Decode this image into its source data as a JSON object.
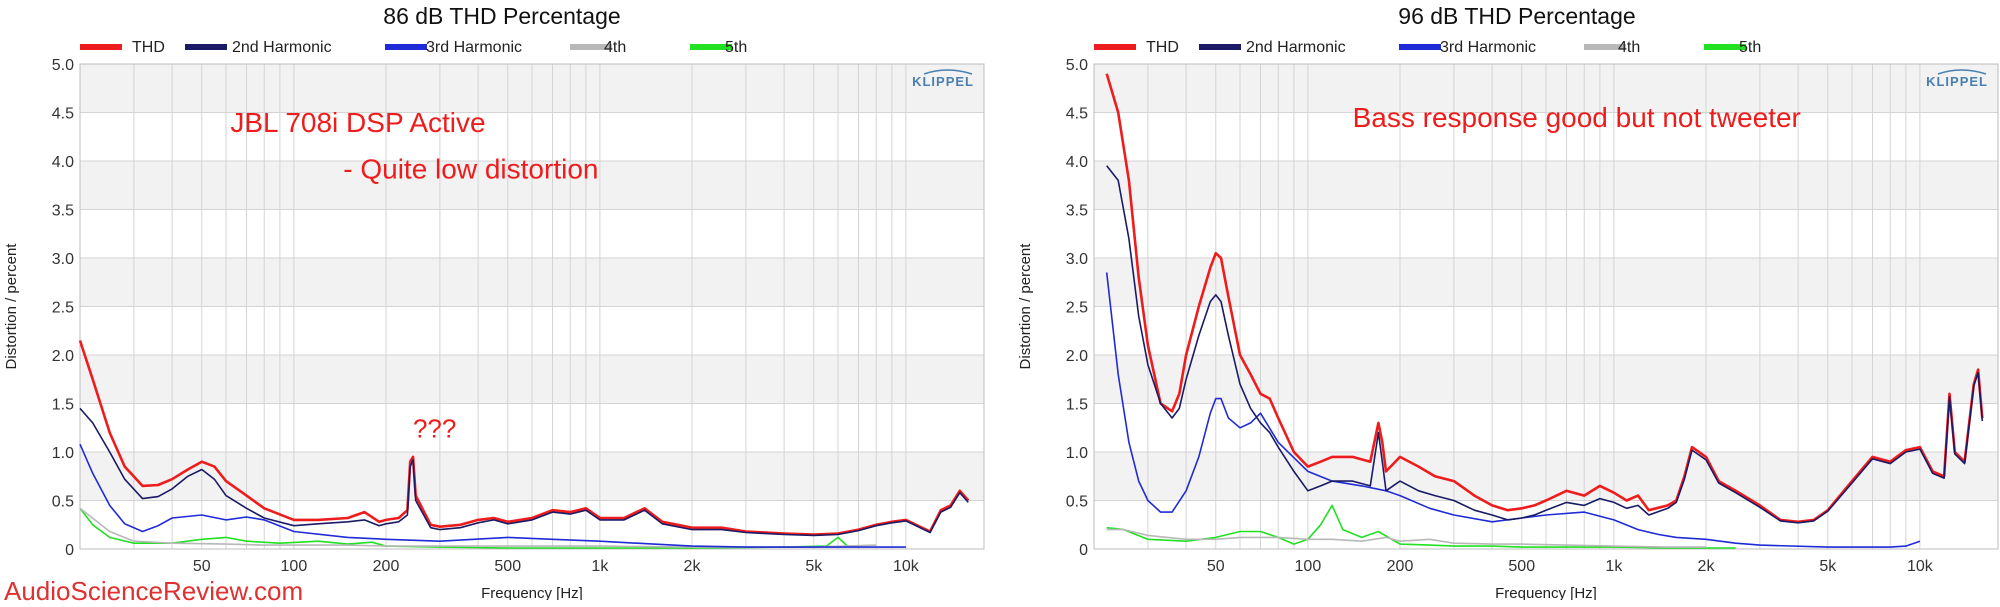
{
  "watermark": "AudioScienceReview.com",
  "colors": {
    "THD": "#ee1c1c",
    "2nd Harmonic": "#1a1a66",
    "3rd Harmonic": "#1f2bd6",
    "4th": "#b8b8b8",
    "5th": "#22e022",
    "annotation": "#ee1c1c",
    "band": "#f2f2f2",
    "grid": "#d4d4d4"
  },
  "chart_data": [
    {
      "type": "line",
      "title": "86 dB THD Percentage",
      "xlabel": "Frequency [Hz]",
      "ylabel": "Distortion / percent",
      "xscale": "log",
      "xlim": [
        20,
        18000
      ],
      "ylim": [
        0,
        5
      ],
      "xticks": [
        50,
        100,
        200,
        500,
        1000,
        2000,
        5000,
        10000
      ],
      "xticklabels": [
        "50",
        "100",
        "200",
        "500",
        "1k",
        "2k",
        "5k",
        "10k"
      ],
      "yticklabels": [
        "0",
        "0.5",
        "1.0",
        "1.5",
        "2.0",
        "2.5",
        "3.0",
        "3.5",
        "4.0",
        "4.5",
        "5.0"
      ],
      "grid": true,
      "legend_position": "top",
      "logo": "KLIPPEL",
      "annotations": [
        {
          "text": "JBL 708i DSP Active",
          "x": 62,
          "y": 4.3
        },
        {
          "text": "- Quite low distortion",
          "x": 145,
          "y": 3.82
        },
        {
          "text": "???",
          "x": 245,
          "y": 1.15
        }
      ],
      "series": [
        {
          "name": "THD",
          "x": [
            20,
            22,
            25,
            28,
            32,
            36,
            40,
            45,
            50,
            55,
            60,
            70,
            80,
            100,
            120,
            150,
            170,
            190,
            200,
            220,
            235,
            240,
            245,
            250,
            280,
            300,
            350,
            400,
            450,
            500,
            600,
            700,
            800,
            900,
            1000,
            1200,
            1400,
            1600,
            2000,
            2500,
            3000,
            4000,
            5000,
            6000,
            7000,
            8000,
            9000,
            10000,
            12000,
            13000,
            14000,
            15000,
            16000
          ],
          "y": [
            2.15,
            1.75,
            1.2,
            0.85,
            0.65,
            0.66,
            0.72,
            0.82,
            0.9,
            0.85,
            0.7,
            0.55,
            0.42,
            0.3,
            0.3,
            0.32,
            0.38,
            0.28,
            0.3,
            0.32,
            0.4,
            0.9,
            0.95,
            0.55,
            0.25,
            0.23,
            0.25,
            0.3,
            0.32,
            0.28,
            0.32,
            0.4,
            0.38,
            0.42,
            0.32,
            0.32,
            0.42,
            0.28,
            0.22,
            0.22,
            0.18,
            0.16,
            0.15,
            0.16,
            0.2,
            0.25,
            0.28,
            0.3,
            0.18,
            0.4,
            0.45,
            0.6,
            0.5
          ]
        },
        {
          "name": "2nd Harmonic",
          "x": [
            20,
            22,
            25,
            28,
            32,
            36,
            40,
            45,
            50,
            55,
            60,
            70,
            80,
            100,
            120,
            150,
            170,
            190,
            200,
            220,
            235,
            240,
            245,
            250,
            280,
            300,
            350,
            400,
            450,
            500,
            600,
            700,
            800,
            900,
            1000,
            1200,
            1400,
            1600,
            2000,
            2500,
            3000,
            4000,
            5000,
            6000,
            7000,
            8000,
            9000,
            10000,
            12000,
            13000,
            14000,
            15000,
            16000
          ],
          "y": [
            1.45,
            1.3,
            1.0,
            0.72,
            0.52,
            0.54,
            0.62,
            0.75,
            0.82,
            0.72,
            0.55,
            0.42,
            0.32,
            0.24,
            0.26,
            0.28,
            0.3,
            0.24,
            0.26,
            0.28,
            0.35,
            0.85,
            0.92,
            0.5,
            0.22,
            0.2,
            0.22,
            0.27,
            0.3,
            0.26,
            0.3,
            0.38,
            0.36,
            0.4,
            0.3,
            0.3,
            0.4,
            0.26,
            0.2,
            0.2,
            0.17,
            0.15,
            0.14,
            0.15,
            0.19,
            0.24,
            0.27,
            0.29,
            0.17,
            0.38,
            0.43,
            0.58,
            0.48
          ]
        },
        {
          "name": "3rd Harmonic",
          "x": [
            20,
            22,
            25,
            28,
            32,
            36,
            40,
            50,
            60,
            70,
            80,
            100,
            150,
            200,
            300,
            500,
            700,
            1000,
            1500,
            2000,
            3000,
            5000,
            7000,
            10000
          ],
          "y": [
            1.08,
            0.78,
            0.45,
            0.26,
            0.18,
            0.24,
            0.32,
            0.35,
            0.3,
            0.33,
            0.3,
            0.18,
            0.12,
            0.1,
            0.08,
            0.12,
            0.1,
            0.08,
            0.05,
            0.03,
            0.02,
            0.02,
            0.02,
            0.02
          ]
        },
        {
          "name": "4th",
          "x": [
            20,
            25,
            30,
            40,
            60,
            80,
            100,
            150,
            200,
            300,
            500,
            1000,
            2000,
            5000,
            8000
          ],
          "y": [
            0.42,
            0.18,
            0.08,
            0.06,
            0.05,
            0.04,
            0.04,
            0.04,
            0.03,
            0.03,
            0.03,
            0.03,
            0.02,
            0.02,
            0.04
          ]
        },
        {
          "name": "5th",
          "x": [
            20,
            22,
            25,
            30,
            40,
            50,
            60,
            70,
            90,
            120,
            150,
            180,
            200,
            300,
            500,
            1000,
            2000,
            4000,
            5500,
            6000,
            6500
          ],
          "y": [
            0.42,
            0.25,
            0.12,
            0.06,
            0.06,
            0.1,
            0.12,
            0.08,
            0.06,
            0.08,
            0.05,
            0.07,
            0.03,
            0.02,
            0.01,
            0.01,
            0.01,
            0.02,
            0.03,
            0.12,
            0.02
          ]
        }
      ]
    },
    {
      "type": "line",
      "title": "96 dB THD Percentage",
      "xlabel": "Frequency [Hz]",
      "ylabel": "Distortion / percent",
      "xscale": "log",
      "xlim": [
        20,
        18000
      ],
      "ylim": [
        0,
        5
      ],
      "xticks": [
        50,
        100,
        200,
        500,
        1000,
        2000,
        5000,
        10000
      ],
      "xticklabels": [
        "50",
        "100",
        "200",
        "500",
        "1k",
        "2k",
        "5k",
        "10k"
      ],
      "yticklabels": [
        "0",
        "0.5",
        "1.0",
        "1.5",
        "2.0",
        "2.5",
        "3.0",
        "3.5",
        "4.0",
        "4.5",
        "5.0"
      ],
      "grid": true,
      "legend_position": "top",
      "logo": "KLIPPEL",
      "annotations": [
        {
          "text": "Bass response good but not tweeter",
          "x": 140,
          "y": 4.35
        }
      ],
      "series": [
        {
          "name": "THD",
          "x": [
            22,
            24,
            26,
            28,
            30,
            33,
            36,
            38,
            40,
            44,
            48,
            50,
            52,
            55,
            60,
            65,
            70,
            75,
            80,
            90,
            100,
            110,
            120,
            140,
            160,
            170,
            175,
            180,
            200,
            230,
            260,
            300,
            350,
            400,
            450,
            500,
            550,
            600,
            700,
            800,
            900,
            1000,
            1100,
            1200,
            1300,
            1500,
            1600,
            1700,
            1800,
            2000,
            2200,
            2500,
            3000,
            3500,
            4000,
            4500,
            5000,
            6000,
            7000,
            8000,
            9000,
            10000,
            11000,
            12000,
            12500,
            13000,
            14000,
            15000,
            15500,
            16000
          ],
          "y": [
            4.9,
            4.5,
            3.8,
            2.8,
            2.1,
            1.5,
            1.42,
            1.6,
            2.0,
            2.5,
            2.9,
            3.05,
            3.0,
            2.6,
            2.0,
            1.8,
            1.6,
            1.55,
            1.35,
            1.0,
            0.85,
            0.9,
            0.95,
            0.95,
            0.9,
            1.3,
            1.1,
            0.8,
            0.95,
            0.85,
            0.75,
            0.7,
            0.55,
            0.45,
            0.4,
            0.42,
            0.45,
            0.5,
            0.6,
            0.55,
            0.65,
            0.58,
            0.5,
            0.55,
            0.4,
            0.45,
            0.5,
            0.75,
            1.05,
            0.95,
            0.7,
            0.6,
            0.45,
            0.3,
            0.28,
            0.3,
            0.4,
            0.7,
            0.95,
            0.9,
            1.02,
            1.05,
            0.8,
            0.75,
            1.6,
            1.0,
            0.9,
            1.7,
            1.85,
            1.35
          ]
        },
        {
          "name": "2nd Harmonic",
          "x": [
            22,
            24,
            26,
            28,
            30,
            33,
            36,
            38,
            40,
            44,
            48,
            50,
            52,
            55,
            60,
            65,
            70,
            75,
            80,
            90,
            100,
            110,
            120,
            140,
            160,
            170,
            175,
            180,
            200,
            230,
            260,
            300,
            350,
            400,
            450,
            500,
            550,
            600,
            700,
            800,
            900,
            1000,
            1100,
            1200,
            1300,
            1500,
            1600,
            1700,
            1800,
            2000,
            2200,
            2500,
            3000,
            3500,
            4000,
            4500,
            5000,
            6000,
            7000,
            8000,
            9000,
            10000,
            11000,
            12000,
            12500,
            13000,
            14000,
            15000,
            15500,
            16000
          ],
          "y": [
            3.95,
            3.8,
            3.2,
            2.4,
            1.9,
            1.5,
            1.35,
            1.45,
            1.75,
            2.2,
            2.55,
            2.62,
            2.55,
            2.2,
            1.7,
            1.45,
            1.3,
            1.2,
            1.05,
            0.8,
            0.6,
            0.65,
            0.7,
            0.7,
            0.65,
            1.2,
            0.9,
            0.6,
            0.7,
            0.6,
            0.55,
            0.5,
            0.4,
            0.35,
            0.3,
            0.32,
            0.35,
            0.4,
            0.48,
            0.45,
            0.52,
            0.48,
            0.42,
            0.45,
            0.35,
            0.42,
            0.48,
            0.72,
            1.02,
            0.92,
            0.68,
            0.58,
            0.43,
            0.29,
            0.27,
            0.29,
            0.39,
            0.68,
            0.93,
            0.88,
            1.0,
            1.03,
            0.78,
            0.73,
            1.57,
            0.98,
            0.88,
            1.68,
            1.82,
            1.32
          ]
        },
        {
          "name": "3rd Harmonic",
          "x": [
            22,
            24,
            26,
            28,
            30,
            33,
            36,
            40,
            44,
            48,
            50,
            52,
            55,
            60,
            65,
            70,
            80,
            100,
            120,
            150,
            180,
            200,
            250,
            300,
            400,
            500,
            600,
            800,
            1000,
            1200,
            1400,
            1600,
            2000,
            2500,
            3000,
            5000,
            8000,
            9000,
            10000
          ],
          "y": [
            2.85,
            1.8,
            1.1,
            0.7,
            0.5,
            0.38,
            0.38,
            0.6,
            0.95,
            1.4,
            1.55,
            1.55,
            1.35,
            1.25,
            1.3,
            1.4,
            1.1,
            0.8,
            0.7,
            0.65,
            0.6,
            0.55,
            0.42,
            0.35,
            0.28,
            0.32,
            0.35,
            0.38,
            0.3,
            0.2,
            0.15,
            0.12,
            0.1,
            0.06,
            0.04,
            0.02,
            0.02,
            0.03,
            0.08
          ]
        },
        {
          "name": "4th",
          "x": [
            22,
            25,
            30,
            40,
            50,
            60,
            80,
            100,
            120,
            150,
            180,
            200,
            250,
            300,
            400,
            500,
            700,
            1000,
            1500,
            2000
          ],
          "y": [
            0.2,
            0.2,
            0.14,
            0.1,
            0.1,
            0.12,
            0.12,
            0.1,
            0.1,
            0.08,
            0.12,
            0.08,
            0.1,
            0.06,
            0.05,
            0.05,
            0.04,
            0.03,
            0.02,
            0.02
          ]
        },
        {
          "name": "5th",
          "x": [
            22,
            25,
            30,
            40,
            50,
            60,
            70,
            80,
            90,
            100,
            110,
            120,
            130,
            150,
            170,
            200,
            250,
            300,
            400,
            500,
            700,
            1000,
            1500,
            2000,
            2500
          ],
          "y": [
            0.22,
            0.2,
            0.1,
            0.08,
            0.12,
            0.18,
            0.18,
            0.12,
            0.05,
            0.1,
            0.25,
            0.45,
            0.2,
            0.12,
            0.18,
            0.05,
            0.04,
            0.03,
            0.03,
            0.02,
            0.02,
            0.02,
            0.01,
            0.01,
            0.01
          ]
        }
      ]
    }
  ]
}
